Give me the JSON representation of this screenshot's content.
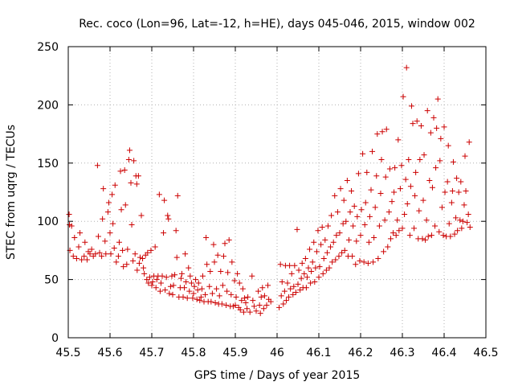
{
  "chart_data": {
    "type": "scatter",
    "title": "Rec. coco (Lon=96, Lat=-12, h=HE), days 045-046, 2015, window 002",
    "xlabel": "GPS time / Days of year 2015",
    "ylabel": "STEC from uqrg / TECUs",
    "xlim": [
      45.5,
      46.5
    ],
    "ylim": [
      0,
      250
    ],
    "xticks": [
      "45.5",
      "45.6",
      "45.7",
      "45.8",
      "45.9",
      "46",
      "46.1",
      "46.2",
      "46.3",
      "46.4",
      "46.5"
    ],
    "yticks": [
      "0",
      "50",
      "100",
      "150",
      "200",
      "250"
    ],
    "grid": true,
    "marker": "+",
    "color": "#cc0000",
    "points": [
      [
        45.502,
        106
      ],
      [
        45.503,
        97
      ],
      [
        45.504,
        75
      ],
      [
        45.508,
        96
      ],
      [
        45.512,
        70
      ],
      [
        45.515,
        86
      ],
      [
        45.52,
        68
      ],
      [
        45.525,
        78
      ],
      [
        45.528,
        90
      ],
      [
        45.532,
        67
      ],
      [
        45.538,
        70
      ],
      [
        45.54,
        82
      ],
      [
        45.545,
        67
      ],
      [
        45.548,
        74
      ],
      [
        45.552,
        72
      ],
      [
        45.556,
        76
      ],
      [
        45.56,
        70
      ],
      [
        45.565,
        72
      ],
      [
        45.57,
        148
      ],
      [
        45.572,
        87
      ],
      [
        45.575,
        73
      ],
      [
        45.58,
        70
      ],
      [
        45.582,
        102
      ],
      [
        45.584,
        128
      ],
      [
        45.588,
        83
      ],
      [
        45.59,
        72
      ],
      [
        45.595,
        108
      ],
      [
        45.597,
        116
      ],
      [
        45.6,
        90
      ],
      [
        45.602,
        72
      ],
      [
        45.605,
        123
      ],
      [
        45.607,
        98
      ],
      [
        45.61,
        77
      ],
      [
        45.612,
        131
      ],
      [
        45.615,
        65
      ],
      [
        45.62,
        70
      ],
      [
        45.622,
        82
      ],
      [
        45.625,
        143
      ],
      [
        45.627,
        110
      ],
      [
        45.63,
        75
      ],
      [
        45.632,
        61
      ],
      [
        45.635,
        144
      ],
      [
        45.637,
        114
      ],
      [
        45.64,
        63
      ],
      [
        45.642,
        76
      ],
      [
        45.645,
        153
      ],
      [
        45.647,
        161
      ],
      [
        45.65,
        133
      ],
      [
        45.652,
        97
      ],
      [
        45.655,
        66
      ],
      [
        45.657,
        152
      ],
      [
        45.66,
        72
      ],
      [
        45.662,
        139
      ],
      [
        45.664,
        132
      ],
      [
        45.665,
        58
      ],
      [
        45.668,
        139
      ],
      [
        45.67,
        64
      ],
      [
        45.672,
        69
      ],
      [
        45.675,
        105
      ],
      [
        45.678,
        68
      ],
      [
        45.68,
        60
      ],
      [
        45.682,
        55
      ],
      [
        45.685,
        71
      ],
      [
        45.688,
        50
      ],
      [
        45.69,
        73
      ],
      [
        45.692,
        47
      ],
      [
        45.695,
        52
      ],
      [
        45.698,
        75
      ],
      [
        45.7,
        45
      ],
      [
        45.702,
        48
      ],
      [
        45.705,
        53
      ],
      [
        45.708,
        78
      ],
      [
        45.71,
        43
      ],
      [
        45.712,
        50
      ],
      [
        45.715,
        53
      ],
      [
        45.718,
        123
      ],
      [
        45.72,
        40
      ],
      [
        45.722,
        47
      ],
      [
        45.725,
        53
      ],
      [
        45.728,
        90
      ],
      [
        45.73,
        118
      ],
      [
        45.732,
        41
      ],
      [
        45.735,
        52
      ],
      [
        45.738,
        105
      ],
      [
        45.74,
        102
      ],
      [
        45.742,
        38
      ],
      [
        45.745,
        44
      ],
      [
        45.748,
        53
      ],
      [
        45.75,
        37
      ],
      [
        45.752,
        45
      ],
      [
        45.755,
        54
      ],
      [
        45.758,
        92
      ],
      [
        45.76,
        69
      ],
      [
        45.762,
        122
      ],
      [
        45.765,
        35
      ],
      [
        45.768,
        43
      ],
      [
        45.77,
        51
      ],
      [
        45.772,
        55
      ],
      [
        45.775,
        35
      ],
      [
        45.778,
        43
      ],
      [
        45.78,
        72
      ],
      [
        45.782,
        48
      ],
      [
        45.785,
        34
      ],
      [
        45.788,
        60
      ],
      [
        45.79,
        40
      ],
      [
        45.792,
        53
      ],
      [
        45.795,
        47
      ],
      [
        45.798,
        34
      ],
      [
        45.8,
        38
      ],
      [
        45.802,
        44
      ],
      [
        45.805,
        50
      ],
      [
        45.808,
        33
      ],
      [
        45.81,
        41
      ],
      [
        45.812,
        47
      ],
      [
        45.815,
        32
      ],
      [
        45.818,
        35
      ],
      [
        45.82,
        42
      ],
      [
        45.822,
        53
      ],
      [
        45.825,
        31
      ],
      [
        45.828,
        37
      ],
      [
        45.83,
        86
      ],
      [
        45.832,
        63
      ],
      [
        45.835,
        31
      ],
      [
        45.838,
        44
      ],
      [
        45.84,
        57
      ],
      [
        45.842,
        31
      ],
      [
        45.845,
        38
      ],
      [
        45.848,
        80
      ],
      [
        45.85,
        65
      ],
      [
        45.852,
        30
      ],
      [
        45.855,
        42
      ],
      [
        45.858,
        71
      ],
      [
        45.86,
        29
      ],
      [
        45.862,
        36
      ],
      [
        45.865,
        57
      ],
      [
        45.868,
        29
      ],
      [
        45.87,
        45
      ],
      [
        45.872,
        70
      ],
      [
        45.875,
        81
      ],
      [
        45.878,
        28
      ],
      [
        45.88,
        40
      ],
      [
        45.882,
        56
      ],
      [
        45.885,
        84
      ],
      [
        45.888,
        27
      ],
      [
        45.89,
        37
      ],
      [
        45.892,
        65
      ],
      [
        45.895,
        27
      ],
      [
        45.898,
        49
      ],
      [
        45.9,
        28
      ],
      [
        45.902,
        35
      ],
      [
        45.905,
        55
      ],
      [
        45.908,
        26
      ],
      [
        45.91,
        47
      ],
      [
        45.912,
        24
      ],
      [
        45.915,
        32
      ],
      [
        45.918,
        42
      ],
      [
        45.92,
        22
      ],
      [
        45.922,
        34
      ],
      [
        45.925,
        30
      ],
      [
        45.928,
        25
      ],
      [
        45.93,
        35
      ],
      [
        45.935,
        22
      ],
      [
        45.94,
        53
      ],
      [
        45.942,
        32
      ],
      [
        45.945,
        27
      ],
      [
        45.95,
        23
      ],
      [
        45.955,
        40
      ],
      [
        45.958,
        28
      ],
      [
        45.96,
        21
      ],
      [
        45.962,
        35
      ],
      [
        45.965,
        43
      ],
      [
        45.968,
        25
      ],
      [
        45.97,
        36
      ],
      [
        45.975,
        28
      ],
      [
        45.978,
        45
      ],
      [
        45.98,
        33
      ],
      [
        45.985,
        31
      ],
      [
        46.005,
        26
      ],
      [
        46.008,
        63
      ],
      [
        46.01,
        36
      ],
      [
        46.012,
        48
      ],
      [
        46.015,
        29
      ],
      [
        46.018,
        40
      ],
      [
        46.02,
        62
      ],
      [
        46.022,
        32
      ],
      [
        46.025,
        47
      ],
      [
        46.028,
        35
      ],
      [
        46.03,
        62
      ],
      [
        46.032,
        42
      ],
      [
        46.035,
        55
      ],
      [
        46.038,
        37
      ],
      [
        46.04,
        44
      ],
      [
        46.042,
        62
      ],
      [
        46.045,
        39
      ],
      [
        46.048,
        93
      ],
      [
        46.05,
        46
      ],
      [
        46.052,
        58
      ],
      [
        46.055,
        41
      ],
      [
        46.058,
        51
      ],
      [
        46.06,
        64
      ],
      [
        46.062,
        43
      ],
      [
        46.065,
        55
      ],
      [
        46.068,
        68
      ],
      [
        46.07,
        43
      ],
      [
        46.072,
        52
      ],
      [
        46.075,
        60
      ],
      [
        46.078,
        76
      ],
      [
        46.08,
        47
      ],
      [
        46.082,
        57
      ],
      [
        46.085,
        65
      ],
      [
        46.088,
        82
      ],
      [
        46.09,
        48
      ],
      [
        46.092,
        60
      ],
      [
        46.095,
        74
      ],
      [
        46.098,
        92
      ],
      [
        46.1,
        52
      ],
      [
        46.102,
        61
      ],
      [
        46.105,
        80
      ],
      [
        46.108,
        95
      ],
      [
        46.11,
        55
      ],
      [
        46.112,
        68
      ],
      [
        46.115,
        84
      ],
      [
        46.118,
        58
      ],
      [
        46.12,
        73
      ],
      [
        46.122,
        96
      ],
      [
        46.125,
        60
      ],
      [
        46.128,
        78
      ],
      [
        46.13,
        105
      ],
      [
        46.132,
        65
      ],
      [
        46.135,
        82
      ],
      [
        46.138,
        122
      ],
      [
        46.14,
        67
      ],
      [
        46.142,
        88
      ],
      [
        46.145,
        108
      ],
      [
        46.148,
        70
      ],
      [
        46.15,
        90
      ],
      [
        46.152,
        128
      ],
      [
        46.155,
        73
      ],
      [
        46.158,
        98
      ],
      [
        46.16,
        118
      ],
      [
        46.162,
        75
      ],
      [
        46.165,
        100
      ],
      [
        46.168,
        135
      ],
      [
        46.17,
        70
      ],
      [
        46.172,
        84
      ],
      [
        46.175,
        108
      ],
      [
        46.178,
        126
      ],
      [
        46.18,
        70
      ],
      [
        46.182,
        96
      ],
      [
        46.185,
        113
      ],
      [
        46.188,
        63
      ],
      [
        46.19,
        83
      ],
      [
        46.192,
        104
      ],
      [
        46.195,
        141
      ],
      [
        46.198,
        66
      ],
      [
        46.2,
        88
      ],
      [
        46.202,
        110
      ],
      [
        46.205,
        158
      ],
      [
        46.208,
        65
      ],
      [
        46.21,
        97
      ],
      [
        46.212,
        116
      ],
      [
        46.215,
        142
      ],
      [
        46.218,
        64
      ],
      [
        46.22,
        82
      ],
      [
        46.222,
        104
      ],
      [
        46.225,
        127
      ],
      [
        46.228,
        160
      ],
      [
        46.23,
        65
      ],
      [
        46.232,
        86
      ],
      [
        46.235,
        112
      ],
      [
        46.238,
        139
      ],
      [
        46.24,
        175
      ],
      [
        46.242,
        68
      ],
      [
        46.245,
        96
      ],
      [
        46.248,
        124
      ],
      [
        46.25,
        153
      ],
      [
        46.252,
        177
      ],
      [
        46.255,
        74
      ],
      [
        46.258,
        101
      ],
      [
        46.26,
        138
      ],
      [
        46.262,
        179
      ],
      [
        46.265,
        78
      ],
      [
        46.268,
        108
      ],
      [
        46.27,
        145
      ],
      [
        46.272,
        85
      ],
      [
        46.275,
        117
      ],
      [
        46.278,
        90
      ],
      [
        46.28,
        125
      ],
      [
        46.282,
        146
      ],
      [
        46.285,
        88
      ],
      [
        46.288,
        101
      ],
      [
        46.29,
        170
      ],
      [
        46.292,
        92
      ],
      [
        46.295,
        128
      ],
      [
        46.298,
        148
      ],
      [
        46.3,
        94
      ],
      [
        46.302,
        207
      ],
      [
        46.305,
        106
      ],
      [
        46.308,
        136
      ],
      [
        46.31,
        232
      ],
      [
        46.312,
        115
      ],
      [
        46.315,
        153
      ],
      [
        46.318,
        88
      ],
      [
        46.32,
        130
      ],
      [
        46.322,
        199
      ],
      [
        46.325,
        184
      ],
      [
        46.328,
        94
      ],
      [
        46.33,
        122
      ],
      [
        46.332,
        142
      ],
      [
        46.335,
        186
      ],
      [
        46.338,
        85
      ],
      [
        46.34,
        109
      ],
      [
        46.342,
        153
      ],
      [
        46.345,
        182
      ],
      [
        46.348,
        85
      ],
      [
        46.35,
        118
      ],
      [
        46.352,
        157
      ],
      [
        46.355,
        84
      ],
      [
        46.358,
        101
      ],
      [
        46.36,
        195
      ],
      [
        46.362,
        87
      ],
      [
        46.365,
        135
      ],
      [
        46.368,
        176
      ],
      [
        46.37,
        88
      ],
      [
        46.372,
        129
      ],
      [
        46.375,
        189
      ],
      [
        46.378,
        96
      ],
      [
        46.38,
        146
      ],
      [
        46.382,
        180
      ],
      [
        46.385,
        205
      ],
      [
        46.388,
        91
      ],
      [
        46.39,
        152
      ],
      [
        46.392,
        171
      ],
      [
        46.395,
        112
      ],
      [
        46.398,
        88
      ],
      [
        46.4,
        181
      ],
      [
        46.402,
        125
      ],
      [
        46.405,
        87
      ],
      [
        46.408,
        134
      ],
      [
        46.41,
        165
      ],
      [
        46.412,
        98
      ],
      [
        46.415,
        87
      ],
      [
        46.418,
        116
      ],
      [
        46.42,
        126
      ],
      [
        46.422,
        151
      ],
      [
        46.425,
        89
      ],
      [
        46.428,
        103
      ],
      [
        46.43,
        137
      ],
      [
        46.432,
        92
      ],
      [
        46.435,
        125
      ],
      [
        46.438,
        101
      ],
      [
        46.44,
        134
      ],
      [
        46.442,
        94
      ],
      [
        46.445,
        100
      ],
      [
        46.448,
        114
      ],
      [
        46.45,
        156
      ],
      [
        46.452,
        126
      ],
      [
        46.455,
        99
      ],
      [
        46.458,
        106
      ],
      [
        46.46,
        168
      ],
      [
        46.462,
        95
      ]
    ]
  }
}
